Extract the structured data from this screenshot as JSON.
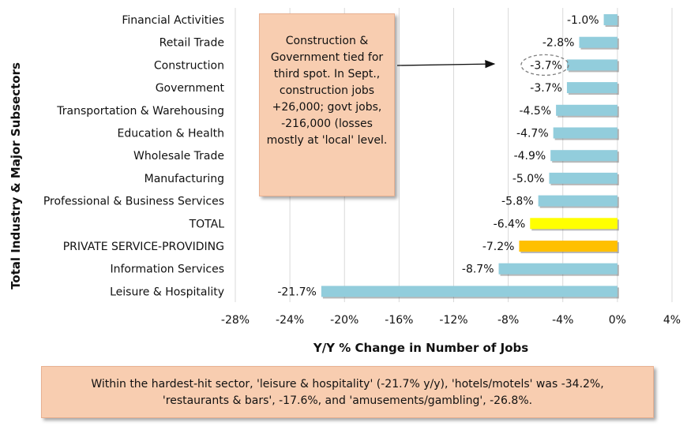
{
  "chart_data": {
    "type": "bar",
    "orientation": "horizontal",
    "categories": [
      "Financial Activities",
      "Retail Trade",
      "Construction",
      "Government",
      "Transportation & Warehousing",
      "Education & Health",
      "Wholesale Trade",
      "Manufacturing",
      "Professional & Business Services",
      "TOTAL",
      "PRIVATE SERVICE-PROVIDING",
      "Information Services",
      "Leisure & Hospitality"
    ],
    "values": [
      -1.0,
      -2.8,
      -3.7,
      -3.7,
      -4.5,
      -4.7,
      -4.9,
      -5.0,
      -5.8,
      -6.4,
      -7.2,
      -8.7,
      -21.7
    ],
    "value_labels": [
      "-1.0%",
      "-2.8%",
      "-3.7%",
      "-3.7%",
      "-4.5%",
      "-4.7%",
      "-4.9%",
      "-5.0%",
      "-5.8%",
      "-6.4%",
      "-7.2%",
      "-8.7%",
      "-21.7%"
    ],
    "bar_colors": [
      "#92cddc",
      "#92cddc",
      "#92cddc",
      "#92cddc",
      "#92cddc",
      "#92cddc",
      "#92cddc",
      "#92cddc",
      "#92cddc",
      "#ffff00",
      "#ffc000",
      "#92cddc",
      "#92cddc"
    ],
    "xlabel": "Y/Y % Change in Number of Jobs",
    "ylabel": "Total Industry & Major Subsectors",
    "xlim": [
      -28,
      4
    ],
    "xticks": [
      -28,
      -24,
      -20,
      -16,
      -12,
      -8,
      -4,
      0,
      4
    ],
    "xtick_labels": [
      "-28%",
      "-24%",
      "-20%",
      "-16%",
      "-12%",
      "-8%",
      "-4%",
      "0%",
      "4%"
    ],
    "grid": true,
    "highlighted_category": "Construction"
  },
  "annotations": {
    "callout_text": "Construction & Government tied for third spot. In Sept., construction jobs +26,000; govt jobs, -216,000 (losses mostly at 'local' level.",
    "note_text": "Within the hardest-hit sector, 'leisure & hospitality' (-21.7% y/y), 'hotels/motels' was -34.2%, 'restaurants & bars', -17.6%, and 'amusements/gambling', -26.8%."
  }
}
